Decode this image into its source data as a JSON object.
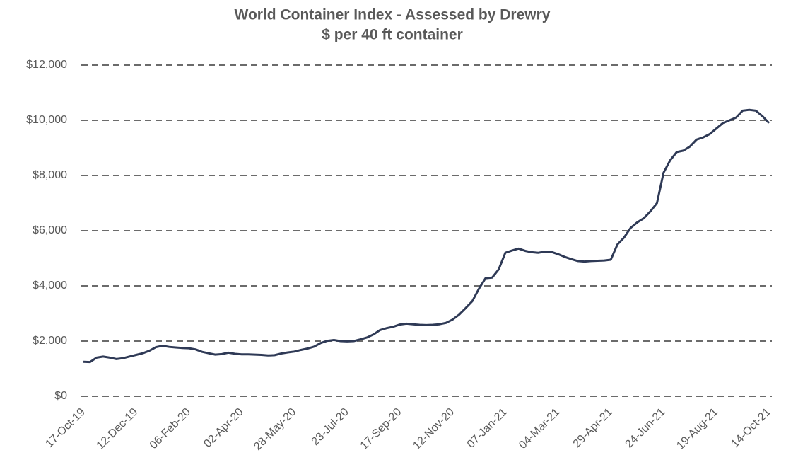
{
  "chart_data": {
    "type": "line",
    "title": "World Container Index - Assessed by Drewry",
    "subtitle": "$ per 40 ft container",
    "categories": [
      "17-Oct-19",
      null,
      null,
      null,
      null,
      null,
      null,
      null,
      "12-Dec-19",
      null,
      null,
      null,
      null,
      null,
      null,
      null,
      "06-Feb-20",
      null,
      null,
      null,
      null,
      null,
      null,
      null,
      "02-Apr-20",
      null,
      null,
      null,
      null,
      null,
      null,
      null,
      "28-May-20",
      null,
      null,
      null,
      null,
      null,
      null,
      null,
      "23-Jul-20",
      null,
      null,
      null,
      null,
      null,
      null,
      null,
      "17-Sep-20",
      null,
      null,
      null,
      null,
      null,
      null,
      null,
      "12-Nov-20",
      null,
      null,
      null,
      null,
      null,
      null,
      null,
      "07-Jan-21",
      null,
      null,
      null,
      null,
      null,
      null,
      null,
      "04-Mar-21",
      null,
      null,
      null,
      null,
      null,
      null,
      null,
      "29-Apr-21",
      null,
      null,
      null,
      null,
      null,
      null,
      null,
      "24-Jun-21",
      null,
      null,
      null,
      null,
      null,
      null,
      null,
      "19-Aug-21",
      null,
      null,
      null,
      null,
      null,
      null,
      null,
      "14-Oct-21"
    ],
    "values": [
      1250,
      1240,
      1400,
      1440,
      1400,
      1350,
      1380,
      1440,
      1500,
      1560,
      1650,
      1780,
      1830,
      1790,
      1770,
      1750,
      1740,
      1700,
      1610,
      1560,
      1510,
      1530,
      1580,
      1540,
      1520,
      1520,
      1510,
      1500,
      1480,
      1490,
      1550,
      1590,
      1620,
      1680,
      1730,
      1800,
      1930,
      2010,
      2040,
      2000,
      1990,
      2000,
      2060,
      2130,
      2240,
      2400,
      2470,
      2520,
      2600,
      2630,
      2610,
      2590,
      2580,
      2590,
      2610,
      2660,
      2780,
      2960,
      3200,
      3450,
      3900,
      4280,
      4300,
      4600,
      5200,
      5280,
      5350,
      5270,
      5220,
      5200,
      5240,
      5230,
      5150,
      5050,
      4970,
      4900,
      4880,
      4900,
      4910,
      4920,
      4950,
      5500,
      5750,
      6100,
      6300,
      6450,
      6700,
      7000,
      8100,
      8550,
      8850,
      8900,
      9050,
      9300,
      9380,
      9500,
      9700,
      9900,
      10000,
      10100,
      10350,
      10380,
      10350,
      10150,
      9900
    ],
    "color": "#2f3a56",
    "ylim": [
      0,
      12000
    ],
    "yticks": [
      {
        "value": 0,
        "label": "$0"
      },
      {
        "value": 2000,
        "label": "$2,000"
      },
      {
        "value": 4000,
        "label": "$4,000"
      },
      {
        "value": 6000,
        "label": "$6,000"
      },
      {
        "value": 8000,
        "label": "$8,000"
      },
      {
        "value": 10000,
        "label": "$10,000"
      },
      {
        "value": 12000,
        "label": "$12,000"
      }
    ],
    "grid": true
  }
}
